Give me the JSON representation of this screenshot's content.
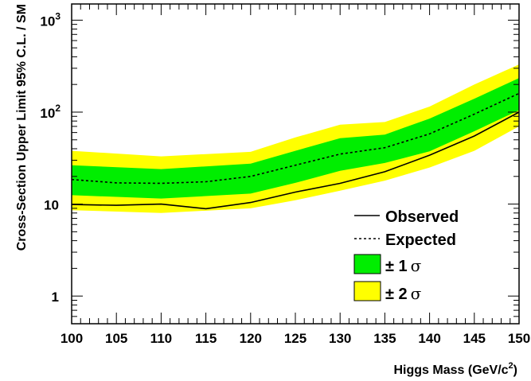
{
  "chart_data": {
    "type": "line",
    "xlabel": "Higgs Mass (GeV/c",
    "xlabel_sup": "2",
    "xlabel_end": ")",
    "ylabel": "Cross-Section Upper Limit 95% C.L. / SM",
    "xlim": [
      100,
      150
    ],
    "ylim": [
      0.5,
      1500
    ],
    "yscale": "log",
    "grid": false,
    "legend_position": "lower-right",
    "x_ticks": [
      100,
      105,
      110,
      115,
      120,
      125,
      130,
      135,
      140,
      145,
      150
    ],
    "x_tick_labels": [
      "100",
      "105",
      "110",
      "115",
      "120",
      "125",
      "130",
      "135",
      "140",
      "145",
      "150"
    ],
    "y_ticks": [
      1,
      10,
      100,
      1000
    ],
    "y_tick_labels": [
      {
        "base": "1",
        "exp": ""
      },
      {
        "base": "10",
        "exp": ""
      },
      {
        "base": "10",
        "exp": "2"
      },
      {
        "base": "10",
        "exp": "3"
      }
    ],
    "x": [
      100,
      110,
      120,
      125,
      130,
      135,
      140,
      145,
      150
    ],
    "band_2sigma": {
      "name": "± 2 σ",
      "color": "#ffff00",
      "lower": [
        8.6,
        8.0,
        9.0,
        11.0,
        14.0,
        18.0,
        25.0,
        38.0,
        70.0
      ],
      "upper": [
        38.0,
        33.0,
        37.0,
        53.0,
        73.0,
        78.0,
        115.0,
        200.0,
        330.0
      ]
    },
    "band_1sigma": {
      "name": "± 1 σ",
      "color": "#00ee00",
      "lower": [
        12.5,
        11.5,
        13.0,
        17.0,
        23.0,
        28.0,
        37.5,
        62.0,
        105.0
      ],
      "upper": [
        26.5,
        24.0,
        27.5,
        38.0,
        52.0,
        57.0,
        85.0,
        140.0,
        235.0
      ]
    },
    "series": [
      {
        "name": "Observed",
        "style": "solid",
        "x": [
          100,
          105,
          110,
          115,
          120,
          125,
          130,
          135,
          140,
          145,
          150
        ],
        "values": [
          9.9,
          9.7,
          10.0,
          8.9,
          10.4,
          13.5,
          16.8,
          22.5,
          34.0,
          55.0,
          100.0
        ]
      },
      {
        "name": "Expected",
        "style": "dashed",
        "x": [
          100,
          105,
          110,
          115,
          120,
          125,
          130,
          135,
          140,
          145,
          150
        ],
        "values": [
          18.5,
          17.0,
          16.8,
          17.5,
          20.0,
          26.5,
          35.0,
          41.0,
          58.0,
          95.0,
          160.0
        ]
      }
    ],
    "legend": {
      "observed": "Observed",
      "expected": "Expected",
      "one_sigma_prefix": "± 1",
      "two_sigma_prefix": "± 2",
      "sigma": "σ"
    }
  }
}
